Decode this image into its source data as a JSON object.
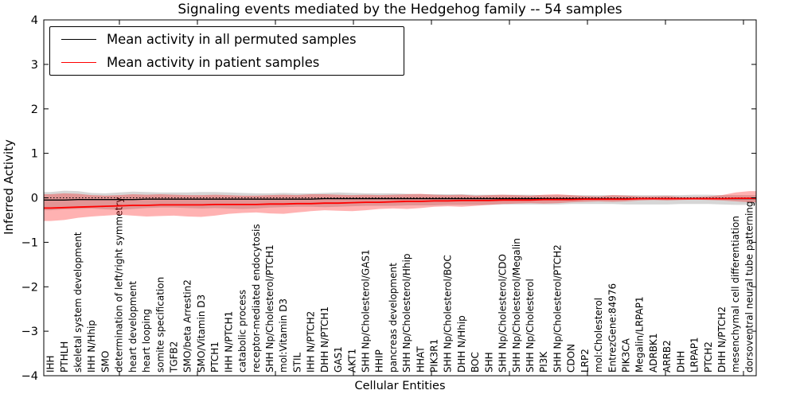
{
  "figure": {
    "background": "#ffffff"
  },
  "chart_data": {
    "type": "line",
    "title": "Signaling events mediated by the Hedgehog family -- 54 samples",
    "xlabel": "Cellular Entities",
    "ylabel": "Inferred Activity",
    "ylim": [
      -4,
      4
    ],
    "yticks": [
      4,
      3,
      2,
      1,
      0,
      -1,
      -2,
      -3,
      -4
    ],
    "grid": false,
    "legend_position": "upper left",
    "zero_line": {
      "style": "dotted",
      "color": "#000000",
      "y": 0
    },
    "categories": [
      "IHH",
      "PTHLH",
      "skeletal system development",
      "IHH N/Hhip",
      "SMO",
      "determination of left/right symmetry",
      "heart development",
      "heart looping",
      "somite specification",
      "TGFB2",
      "SMO/beta Arrestin2",
      "SMO/Vitamin D3",
      "PTCH1",
      "IHH N/PTCH1",
      "catabolic process",
      "receptor-mediated endocytosis",
      "SHH Np/Cholesterol/PTCH1",
      "mol:Vitamin D3",
      "STIL",
      "IHH N/PTCH2",
      "DHH N/PTCH1",
      "GAS1",
      "AKT1",
      "SHH Np/Cholesterol/GAS1",
      "HHIP",
      "pancreas development",
      "SHH Np/Cholesterol/Hhip",
      "HHAT",
      "PIK3R1",
      "SHH Np/Cholesterol/BOC",
      "DHH N/Hhip",
      "BOC",
      "SHH",
      "SHH Np/Cholesterol/CDO",
      "SHH Np/Cholesterol/Megalin",
      "SHH Np/Cholesterol",
      "PI3K",
      "SHH Np/Cholesterol/PTCH2",
      "CDON",
      "LRP2",
      "mol:Cholesterol",
      "EntrezGene:84976",
      "PIK3CA",
      "Megalin/LRPAP1",
      "ADRBK1",
      "ARRB2",
      "DHH",
      "LRPAP1",
      "PTCH2",
      "DHH N/PTCH2",
      "mesenchymal cell differentiation",
      "dorsoventral neural tube patterning"
    ],
    "series": [
      {
        "name": "Mean activity in all permuted samples",
        "color": "#000000",
        "values": [
          -0.05,
          -0.05,
          -0.04,
          -0.04,
          -0.04,
          -0.04,
          -0.04,
          -0.03,
          -0.03,
          -0.03,
          -0.03,
          -0.03,
          -0.03,
          -0.03,
          -0.03,
          -0.03,
          -0.03,
          -0.03,
          -0.03,
          -0.03,
          -0.02,
          -0.02,
          -0.02,
          -0.02,
          -0.02,
          -0.02,
          -0.02,
          -0.02,
          -0.02,
          -0.02,
          -0.02,
          -0.02,
          -0.02,
          -0.02,
          -0.02,
          -0.02,
          -0.02,
          -0.02,
          -0.02,
          -0.02,
          -0.02,
          -0.02,
          -0.02,
          -0.02,
          -0.02,
          -0.02,
          -0.02,
          -0.02,
          -0.02,
          -0.02,
          -0.02,
          -0.02
        ]
      },
      {
        "name": "Mean activity in patient samples",
        "color": "#ff0000",
        "values": [
          -0.23,
          -0.22,
          -0.21,
          -0.2,
          -0.19,
          -0.18,
          -0.17,
          -0.17,
          -0.16,
          -0.16,
          -0.16,
          -0.16,
          -0.15,
          -0.15,
          -0.15,
          -0.15,
          -0.14,
          -0.14,
          -0.13,
          -0.13,
          -0.12,
          -0.12,
          -0.11,
          -0.1,
          -0.1,
          -0.09,
          -0.08,
          -0.08,
          -0.07,
          -0.07,
          -0.06,
          -0.06,
          -0.06,
          -0.05,
          -0.05,
          -0.05,
          -0.04,
          -0.04,
          -0.04,
          -0.03,
          -0.03,
          -0.03,
          -0.03,
          -0.02,
          -0.02,
          -0.02,
          -0.02,
          -0.02,
          -0.02,
          -0.02,
          -0.01,
          -0.01
        ]
      }
    ],
    "bands": [
      {
        "name": "Permuted samples activity range",
        "color": "rgba(0,0,0,0.16)",
        "top": [
          0.13,
          0.16,
          0.15,
          0.11,
          0.1,
          0.12,
          0.14,
          0.13,
          0.12,
          0.12,
          0.12,
          0.13,
          0.13,
          0.12,
          0.11,
          0.1,
          0.1,
          0.11,
          0.1,
          0.1,
          0.11,
          0.12,
          0.11,
          0.1,
          0.1,
          0.1,
          0.09,
          0.08,
          0.08,
          0.08,
          0.08,
          0.07,
          0.07,
          0.07,
          0.07,
          0.07,
          0.06,
          0.06,
          0.06,
          0.06,
          0.06,
          0.06,
          0.06,
          0.06,
          0.06,
          0.06,
          0.06,
          0.07,
          0.07,
          0.06,
          0.06,
          0.06
        ],
        "bottom": [
          -0.28,
          -0.26,
          -0.25,
          -0.24,
          -0.26,
          -0.27,
          -0.25,
          -0.23,
          -0.22,
          -0.22,
          -0.23,
          -0.24,
          -0.23,
          -0.24,
          -0.25,
          -0.24,
          -0.22,
          -0.21,
          -0.2,
          -0.2,
          -0.21,
          -0.2,
          -0.19,
          -0.18,
          -0.18,
          -0.18,
          -0.17,
          -0.17,
          -0.17,
          -0.16,
          -0.16,
          -0.16,
          -0.16,
          -0.15,
          -0.15,
          -0.15,
          -0.15,
          -0.15,
          -0.14,
          -0.14,
          -0.14,
          -0.14,
          -0.15,
          -0.15,
          -0.15,
          -0.15,
          -0.14,
          -0.14,
          -0.14,
          -0.15,
          -0.16,
          -0.16
        ]
      },
      {
        "name": "Patient samples activity range",
        "color": "rgba(255,0,0,0.30)",
        "top": [
          0.08,
          0.1,
          0.09,
          0.06,
          0.05,
          0.06,
          0.08,
          0.07,
          0.08,
          0.07,
          0.06,
          0.06,
          0.07,
          0.06,
          0.05,
          0.05,
          0.06,
          0.07,
          0.06,
          0.08,
          0.08,
          0.07,
          0.06,
          0.07,
          0.06,
          0.07,
          0.08,
          0.09,
          0.07,
          0.06,
          0.07,
          0.05,
          0.06,
          0.07,
          0.06,
          0.05,
          0.07,
          0.08,
          0.06,
          0.04,
          0.03,
          0.06,
          0.05,
          0.03,
          0.03,
          0.04,
          0.02,
          0.02,
          0.03,
          0.06,
          0.12,
          0.15
        ],
        "bottom": [
          -0.52,
          -0.5,
          -0.45,
          -0.42,
          -0.4,
          -0.38,
          -0.4,
          -0.42,
          -0.41,
          -0.4,
          -0.42,
          -0.43,
          -0.4,
          -0.36,
          -0.34,
          -0.33,
          -0.35,
          -0.36,
          -0.33,
          -0.3,
          -0.28,
          -0.29,
          -0.3,
          -0.28,
          -0.25,
          -0.24,
          -0.25,
          -0.23,
          -0.2,
          -0.19,
          -0.2,
          -0.18,
          -0.16,
          -0.14,
          -0.13,
          -0.12,
          -0.13,
          -0.12,
          -0.1,
          -0.09,
          -0.08,
          -0.09,
          -0.08,
          -0.06,
          -0.05,
          -0.06,
          -0.05,
          -0.04,
          -0.05,
          -0.06,
          -0.08,
          -0.1
        ]
      }
    ]
  }
}
